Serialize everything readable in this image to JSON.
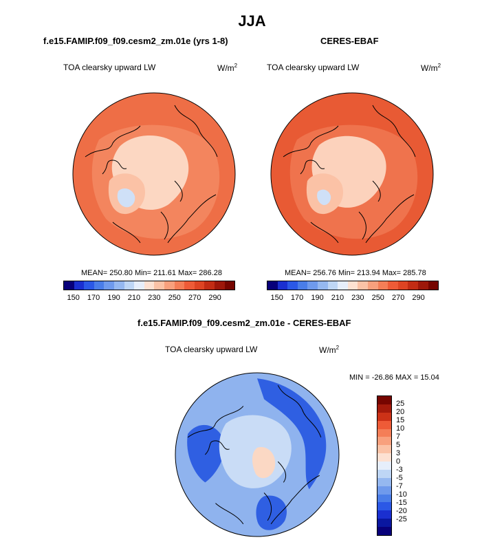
{
  "figure": {
    "title": "JJA"
  },
  "panels": [
    {
      "id": "model",
      "title": "f.e15.FAMIP.f09_f09.cesm2_zm.01e (yrs 1-8)",
      "variable": "TOA clearsky upward LW",
      "units_base": "W/m",
      "units_exp": "2",
      "stats": "MEAN= 250.80  Min= 211.61  Max= 286.28"
    },
    {
      "id": "obs",
      "title": "CERES-EBAF",
      "variable": "TOA clearsky upward LW",
      "units_base": "W/m",
      "units_exp": "2",
      "stats": "MEAN= 256.76  Min= 213.94  Max= 285.78"
    },
    {
      "id": "diff",
      "title": "f.e15.FAMIP.f09_f09.cesm2_zm.01e - CERES-EBAF",
      "variable": "TOA clearsky upward LW",
      "units_base": "W/m",
      "units_exp": "2",
      "stats": "MIN = -26.86 MAX =  15.04"
    }
  ],
  "colorbar_abs": {
    "colors": [
      "#08007a",
      "#1a2fd0",
      "#2b58e6",
      "#4a7de8",
      "#6f9aec",
      "#95b8f0",
      "#bed6f5",
      "#e6eefb",
      "#fde1d2",
      "#fbc2a6",
      "#f8a07d",
      "#f47e57",
      "#ee5b37",
      "#de4423",
      "#c22c14",
      "#9d170a",
      "#760500"
    ],
    "tick_labels": [
      "150",
      "170",
      "190",
      "210",
      "230",
      "250",
      "270",
      "290"
    ]
  },
  "colorbar_diff": {
    "colors": [
      "#760500",
      "#a41a0b",
      "#cc3217",
      "#ee5b37",
      "#f47e57",
      "#f8a07d",
      "#fbc2a6",
      "#fde1d2",
      "#e6eefb",
      "#bed6f5",
      "#95b8f0",
      "#6f9aec",
      "#4a7de8",
      "#2b58e6",
      "#1a2fd0",
      "#0a17a0",
      "#08007a"
    ],
    "tick_labels": [
      "25",
      "20",
      "15",
      "10",
      "7",
      "5",
      "3",
      "0",
      "-3",
      "-5",
      "-7",
      "-10",
      "-15",
      "-20",
      "-25"
    ]
  },
  "map_colors": {
    "model": {
      "outer": "#ee6e46",
      "mid": "#f58f68",
      "ice": "#fcd7c2",
      "greenland": "#fbc2a6",
      "greenland_core": "#cfe0f7"
    },
    "obs": {
      "outer": "#e85a34",
      "mid": "#f27c55",
      "ice": "#fcd2bc",
      "greenland": "#fbc2a6",
      "greenland_core": "#cfe0f7"
    },
    "diff": {
      "outer": "#8fb3ee",
      "land": "#2f5fe2",
      "ice": "#c9dcf6",
      "warm": "#fbd8c4"
    }
  }
}
